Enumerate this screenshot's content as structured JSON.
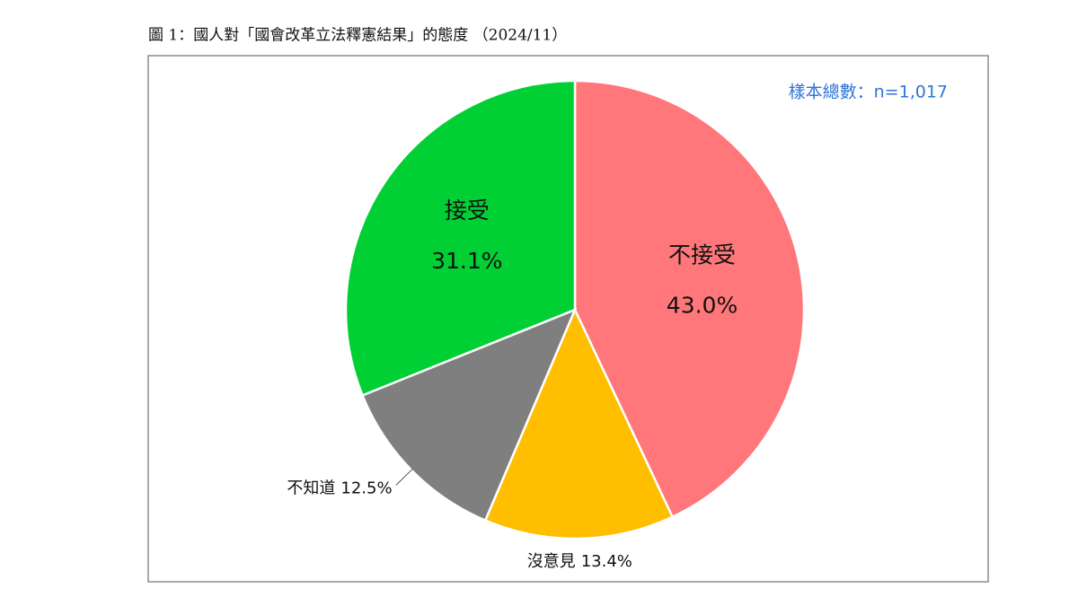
{
  "chart_data": {
    "type": "pie",
    "title": "圖 1：國人對「國會改革立法釋憲結果」的態度 （2024/11）",
    "annotation": "樣本總數：n=1,017",
    "categories": [
      "不接受",
      "沒意見",
      "不知道",
      "接受"
    ],
    "values": [
      43.0,
      13.4,
      12.5,
      31.1
    ],
    "value_labels": [
      "43.0%",
      "13.4%",
      "12.5%",
      "31.1%"
    ],
    "colors": [
      "#ff777a",
      "#ffbf00",
      "#7f7f7f",
      "#00d033"
    ]
  }
}
